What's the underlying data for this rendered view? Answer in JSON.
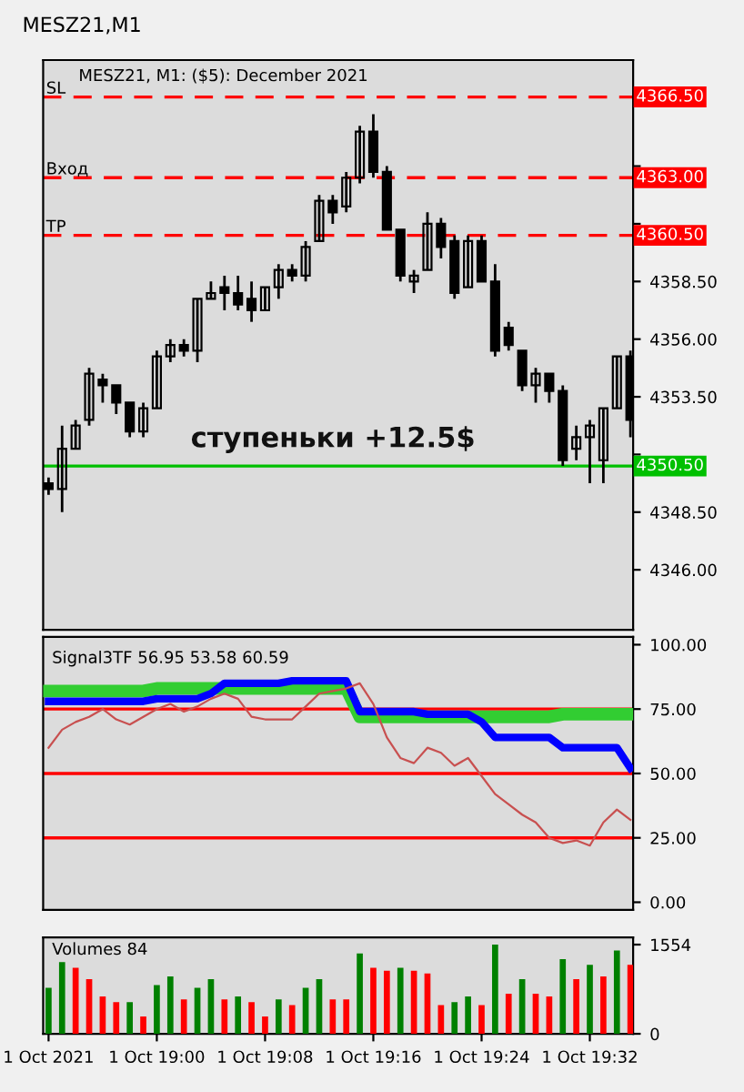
{
  "chart_data": [
    {
      "type": "candlestick",
      "title": "MESZ21, M1: ($5): December 2021",
      "categories": [
        null,
        null,
        null,
        null,
        null,
        null,
        null,
        null,
        null,
        null,
        null,
        null,
        null,
        null,
        null,
        null,
        null,
        null,
        null,
        null,
        null,
        null,
        null,
        null,
        null,
        null,
        null,
        null,
        null,
        null,
        null,
        null,
        null,
        null,
        null,
        null,
        null,
        null,
        null,
        null,
        null,
        null,
        null,
        null
      ],
      "ohlc": [
        [
          4349.75,
          4350.0,
          4349.25,
          4349.5
        ],
        [
          4349.5,
          4352.25,
          4348.5,
          4351.25
        ],
        [
          4351.25,
          4352.5,
          4351.25,
          4352.25
        ],
        [
          4352.5,
          4354.75,
          4352.25,
          4354.5
        ],
        [
          4354.25,
          4354.5,
          4353.25,
          4354.0
        ],
        [
          4354.0,
          4354.0,
          4352.75,
          4353.25
        ],
        [
          4353.25,
          4353.25,
          4351.75,
          4352.0
        ],
        [
          4352.0,
          4353.25,
          4351.75,
          4353.0
        ],
        [
          4353.0,
          4355.5,
          4353.0,
          4355.25
        ],
        [
          4355.25,
          4356.0,
          4355.0,
          4355.75
        ],
        [
          4355.75,
          4356.0,
          4355.25,
          4355.5
        ],
        [
          4355.5,
          4357.75,
          4355.0,
          4357.75
        ],
        [
          4357.75,
          4358.5,
          4357.75,
          4358.0
        ],
        [
          4358.25,
          4358.75,
          4357.25,
          4358.0
        ],
        [
          4358.0,
          4358.75,
          4357.25,
          4357.5
        ],
        [
          4357.75,
          4358.5,
          4356.75,
          4357.25
        ],
        [
          4357.25,
          4358.25,
          4357.25,
          4358.25
        ],
        [
          4358.25,
          4359.25,
          4357.75,
          4359.0
        ],
        [
          4359.0,
          4359.25,
          4358.5,
          4358.75
        ],
        [
          4358.75,
          4360.25,
          4358.5,
          4360.0
        ],
        [
          4360.25,
          4362.25,
          4360.25,
          4362.0
        ],
        [
          4362.0,
          4362.25,
          4361.0,
          4361.5
        ],
        [
          4361.75,
          4363.25,
          4361.5,
          4363.0
        ],
        [
          4363.0,
          4365.25,
          4362.75,
          4365.0
        ],
        [
          4365.0,
          4365.75,
          4363.0,
          4363.25
        ],
        [
          4363.25,
          4363.5,
          4360.75,
          4360.75
        ],
        [
          4360.75,
          4360.75,
          4358.5,
          4358.75
        ],
        [
          4358.5,
          4359.0,
          4358.0,
          4358.75
        ],
        [
          4359.0,
          4361.5,
          4359.0,
          4361.0
        ],
        [
          4361.0,
          4361.25,
          4359.5,
          4360.0
        ],
        [
          4360.25,
          4360.5,
          4357.75,
          4358.0
        ],
        [
          4358.25,
          4360.5,
          4358.25,
          4360.25
        ],
        [
          4360.25,
          4360.5,
          4358.5,
          4358.5
        ],
        [
          4358.5,
          4359.25,
          4355.25,
          4355.5
        ],
        [
          4356.5,
          4356.75,
          4355.5,
          4355.75
        ],
        [
          4355.5,
          4355.5,
          4353.75,
          4354.0
        ],
        [
          4354.0,
          4354.75,
          4353.25,
          4354.5
        ],
        [
          4354.5,
          4354.5,
          4353.25,
          4353.75
        ],
        [
          4353.75,
          4354.0,
          4350.5,
          4350.75
        ],
        [
          4351.25,
          4352.25,
          4350.75,
          4351.75
        ],
        [
          4351.75,
          4352.5,
          4349.75,
          4352.25
        ],
        [
          4350.75,
          4353.0,
          4349.75,
          4353.0
        ],
        [
          4353.0,
          4355.25,
          4353.0,
          4355.25
        ],
        [
          4355.25,
          4355.5,
          4351.75,
          4352.5
        ]
      ],
      "color": "#000000",
      "ylim": [
        4343.4,
        4368.1
      ],
      "yticks": [
        {
          "value": 4346,
          "label": "4346.00"
        },
        {
          "value": 4348.5,
          "label": "4348.50"
        },
        {
          "value": 4351,
          "label": null
        },
        {
          "value": 4353.5,
          "label": "4353.50"
        },
        {
          "value": 4356,
          "label": "4356.00"
        },
        {
          "value": 4358.5,
          "label": "4358.50"
        },
        {
          "value": 4361,
          "label": null
        },
        {
          "value": 4363.5,
          "label": null
        }
      ],
      "ref_lines": [
        {
          "axis": "y",
          "value": 4366.5,
          "label": "SL",
          "color": "#ff0000",
          "line_style": "dashed"
        },
        {
          "axis": "y",
          "value": 4363.0,
          "label": "Вход",
          "color": "#ff0000",
          "line_style": "dashed"
        },
        {
          "axis": "y",
          "value": 4360.5,
          "label": "TP",
          "color": "#ff0000",
          "line_style": "dashed"
        },
        {
          "axis": "y",
          "value": 4350.5,
          "label": null,
          "color": "#00c000",
          "line_style": "solid"
        }
      ],
      "annotations": [
        "MESZ21,M1",
        "ступеньки +12.5$",
        "4366.50",
        "4363.00",
        "4360.50",
        "4350.50"
      ],
      "tick_labels": "y",
      "grid": false,
      "legend": false
    },
    {
      "type": "line",
      "categories": [
        null,
        null,
        null,
        null,
        null,
        null,
        null,
        null,
        null,
        null,
        null,
        null,
        null,
        null,
        null,
        null,
        null,
        null,
        null,
        null,
        null,
        null,
        null,
        null,
        null,
        null,
        null,
        null,
        null,
        null,
        null,
        null,
        null,
        null,
        null,
        null,
        null,
        null,
        null,
        null,
        null,
        null,
        null,
        null
      ],
      "series": [
        {
          "color": "#32cd32",
          "values": [
            82,
            82,
            82,
            82,
            82,
            82,
            82,
            82,
            83,
            83,
            83,
            83,
            83,
            83,
            83,
            83,
            83,
            83,
            83,
            83,
            83,
            83,
            83,
            72,
            72,
            72,
            72,
            72,
            72,
            72,
            72,
            72,
            72,
            72,
            72,
            72,
            72,
            72,
            73,
            73,
            73,
            73,
            73,
            73
          ]
        },
        {
          "color": "#0000ff",
          "values": [
            78,
            78,
            78,
            78,
            78,
            78,
            78,
            78,
            79,
            79,
            79,
            79,
            81,
            85,
            85,
            85,
            85,
            85,
            86,
            86,
            86,
            86,
            86,
            74,
            74,
            74,
            74,
            74,
            73,
            73,
            73,
            73,
            70,
            64,
            64,
            64,
            64,
            64,
            60,
            60,
            60,
            60,
            60,
            52
          ]
        },
        {
          "color": "#c85050",
          "values": [
            60,
            67,
            70,
            72,
            75,
            71,
            69,
            72,
            75,
            77,
            74,
            76,
            79,
            81,
            79,
            72,
            71,
            71,
            71,
            76,
            81,
            82,
            83,
            85,
            77,
            64,
            56,
            54,
            60,
            58,
            53,
            56,
            49,
            42,
            38,
            34,
            31,
            25,
            23,
            24,
            22,
            31,
            36,
            32
          ]
        }
      ],
      "ylim": [
        -3,
        103
      ],
      "yticks": [
        {
          "value": 0,
          "label": "0.00"
        },
        {
          "value": 25,
          "label": "25.00"
        },
        {
          "value": 50,
          "label": "50.00"
        },
        {
          "value": 75,
          "label": "75.00"
        },
        {
          "value": 100,
          "label": "100.00"
        }
      ],
      "ref_lines": [
        {
          "axis": "y",
          "value": 25,
          "color": "#ff0000",
          "line_style": "solid"
        },
        {
          "axis": "y",
          "value": 50,
          "color": "#ff0000",
          "line_style": "solid"
        },
        {
          "axis": "y",
          "value": 75,
          "color": "#ff0000",
          "line_style": "solid"
        }
      ],
      "annotations": [
        "Signal3TF 56.95 53.58 60.59"
      ],
      "tick_labels": "y",
      "grid": false,
      "legend": false,
      "marker": "none",
      "line_style": "solid"
    },
    {
      "type": "bar",
      "categories": [
        "1 Oct 2021",
        null,
        null,
        null,
        null,
        null,
        null,
        null,
        "1 Oct 19:00",
        null,
        null,
        null,
        null,
        null,
        null,
        null,
        "1 Oct 19:08",
        null,
        null,
        null,
        null,
        null,
        null,
        null,
        "1 Oct 19:16",
        null,
        null,
        null,
        null,
        null,
        null,
        null,
        "1 Oct 19:24",
        null,
        null,
        null,
        null,
        null,
        null,
        null,
        "1 Oct 19:32",
        null,
        null,
        null
      ],
      "values": [
        800,
        1250,
        1150,
        950,
        650,
        550,
        550,
        300,
        850,
        1000,
        600,
        800,
        950,
        600,
        650,
        550,
        300,
        600,
        500,
        800,
        950,
        600,
        600,
        1400,
        1150,
        1100,
        1150,
        1100,
        1050,
        500,
        550,
        650,
        500,
        1554,
        700,
        950,
        700,
        650,
        1300,
        950,
        1200,
        1000,
        1450,
        1200
      ],
      "colors": [
        "#008000",
        "#008000",
        "#ff0000",
        "#ff0000",
        "#ff0000",
        "#ff0000",
        "#008000",
        "#ff0000",
        "#008000",
        "#008000",
        "#ff0000",
        "#008000",
        "#008000",
        "#ff0000",
        "#008000",
        "#ff0000",
        "#ff0000",
        "#008000",
        "#ff0000",
        "#008000",
        "#008000",
        "#ff0000",
        "#ff0000",
        "#008000",
        "#ff0000",
        "#ff0000",
        "#008000",
        "#ff0000",
        "#ff0000",
        "#ff0000",
        "#008000",
        "#008000",
        "#ff0000",
        "#008000",
        "#ff0000",
        "#008000",
        "#ff0000",
        "#ff0000",
        "#008000",
        "#ff0000",
        "#008000",
        "#ff0000",
        "#008000",
        "#ff0000"
      ],
      "ylim": [
        0,
        1680
      ],
      "yticks": [
        0,
        1554
      ],
      "annotations": [
        "Volumes 84"
      ],
      "grid": false,
      "legend": false
    }
  ]
}
